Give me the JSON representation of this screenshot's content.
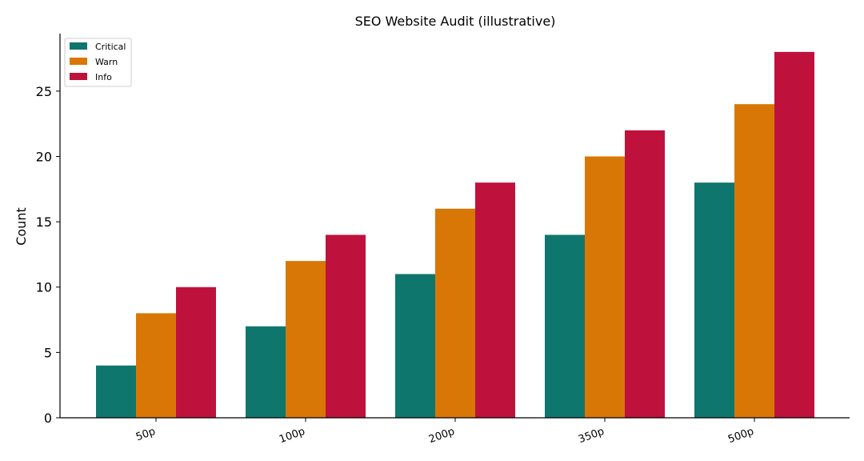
{
  "chart_data": {
    "type": "bar",
    "title": "SEO Website Audit (illustrative)",
    "xlabel": "",
    "ylabel": "Count",
    "categories": [
      "50p",
      "100p",
      "200p",
      "350p",
      "500p"
    ],
    "series": [
      {
        "name": "Critical",
        "color": "#0f766e",
        "values": [
          4,
          7,
          11,
          14,
          18
        ]
      },
      {
        "name": "Warn",
        "color": "#d97706",
        "values": [
          8,
          12,
          16,
          20,
          24
        ]
      },
      {
        "name": "Info",
        "color": "#be123c",
        "values": [
          10,
          14,
          18,
          22,
          28
        ]
      }
    ],
    "ylim": [
      0,
      29.4
    ],
    "yticks": [
      0,
      5,
      10,
      15,
      20,
      25
    ],
    "grid": false,
    "legend_position": "top-left"
  }
}
